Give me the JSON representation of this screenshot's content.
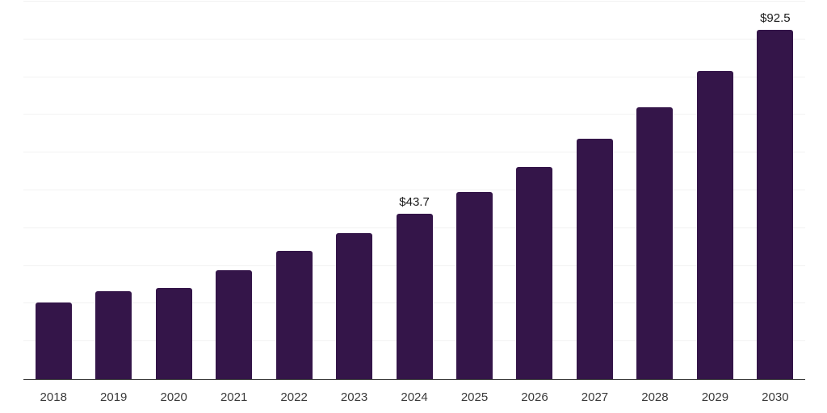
{
  "chart_data": {
    "type": "bar",
    "categories": [
      "2018",
      "2019",
      "2020",
      "2021",
      "2022",
      "2023",
      "2024",
      "2025",
      "2026",
      "2027",
      "2028",
      "2029",
      "2030"
    ],
    "values": [
      20.4,
      23.2,
      24.1,
      28.8,
      33.9,
      38.7,
      43.7,
      49.5,
      56.1,
      63.6,
      72.0,
      81.6,
      92.5
    ],
    "value_labels": {
      "2024": "$43.7",
      "2030": "$92.5"
    },
    "xlabel": "",
    "ylabel": "",
    "ylim": [
      0,
      100
    ],
    "gridline_step": 10,
    "grid": "horizontal-only",
    "legend": "none",
    "y_tick_labels": "none",
    "colors": {
      "bar": "#341549",
      "gridline": "#f2f2f2",
      "axis": "#3c3c3c",
      "tick_label": "#3a3a3a",
      "value_label": "#1a1a1a",
      "background": "#ffffff"
    }
  }
}
